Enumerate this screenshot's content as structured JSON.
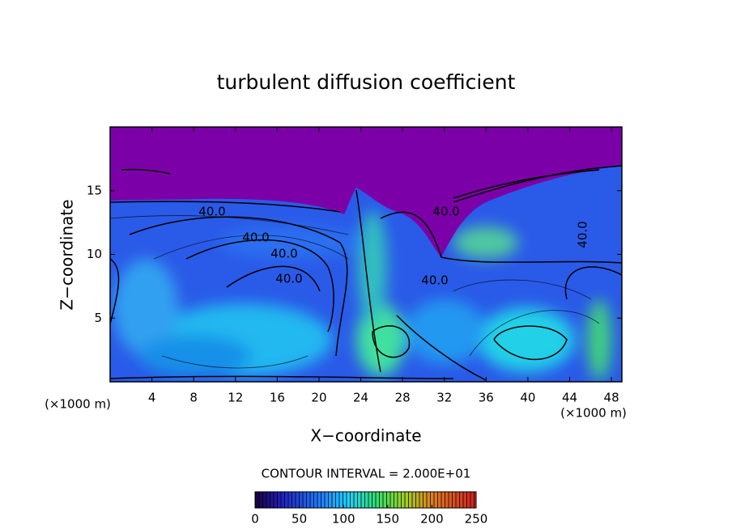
{
  "chart_data": {
    "type": "contour",
    "title": "turbulent diffusion coefficient",
    "x_label": "X−coordinate",
    "y_label": "Z−coordinate",
    "y_unit_label": "(×1000 m)",
    "x_unit_label": "(×1000 m)",
    "xlim": [
      0,
      49
    ],
    "xticks": [
      4,
      8,
      12,
      16,
      20,
      24,
      28,
      32,
      36,
      40,
      44,
      48
    ],
    "ylim": [
      0,
      20
    ],
    "yticks": [
      5,
      10,
      15
    ],
    "contour_labels": [
      {
        "value": 40,
        "label": "40.0"
      },
      {
        "value": 40,
        "label": "40.0"
      },
      {
        "value": 40,
        "label": "40.0"
      },
      {
        "value": 40,
        "label": "40.0"
      },
      {
        "value": 40,
        "label": "40.0"
      },
      {
        "value": 40,
        "label": "40.0"
      },
      {
        "value": 40,
        "label": "40.0"
      }
    ],
    "contour_interval_text": "CONTOUR INTERVAL = 2.000E+01",
    "colorbar_lim": [
      0,
      250
    ],
    "colorbar_ticks": [
      0,
      50,
      100,
      150,
      200,
      250
    ]
  }
}
